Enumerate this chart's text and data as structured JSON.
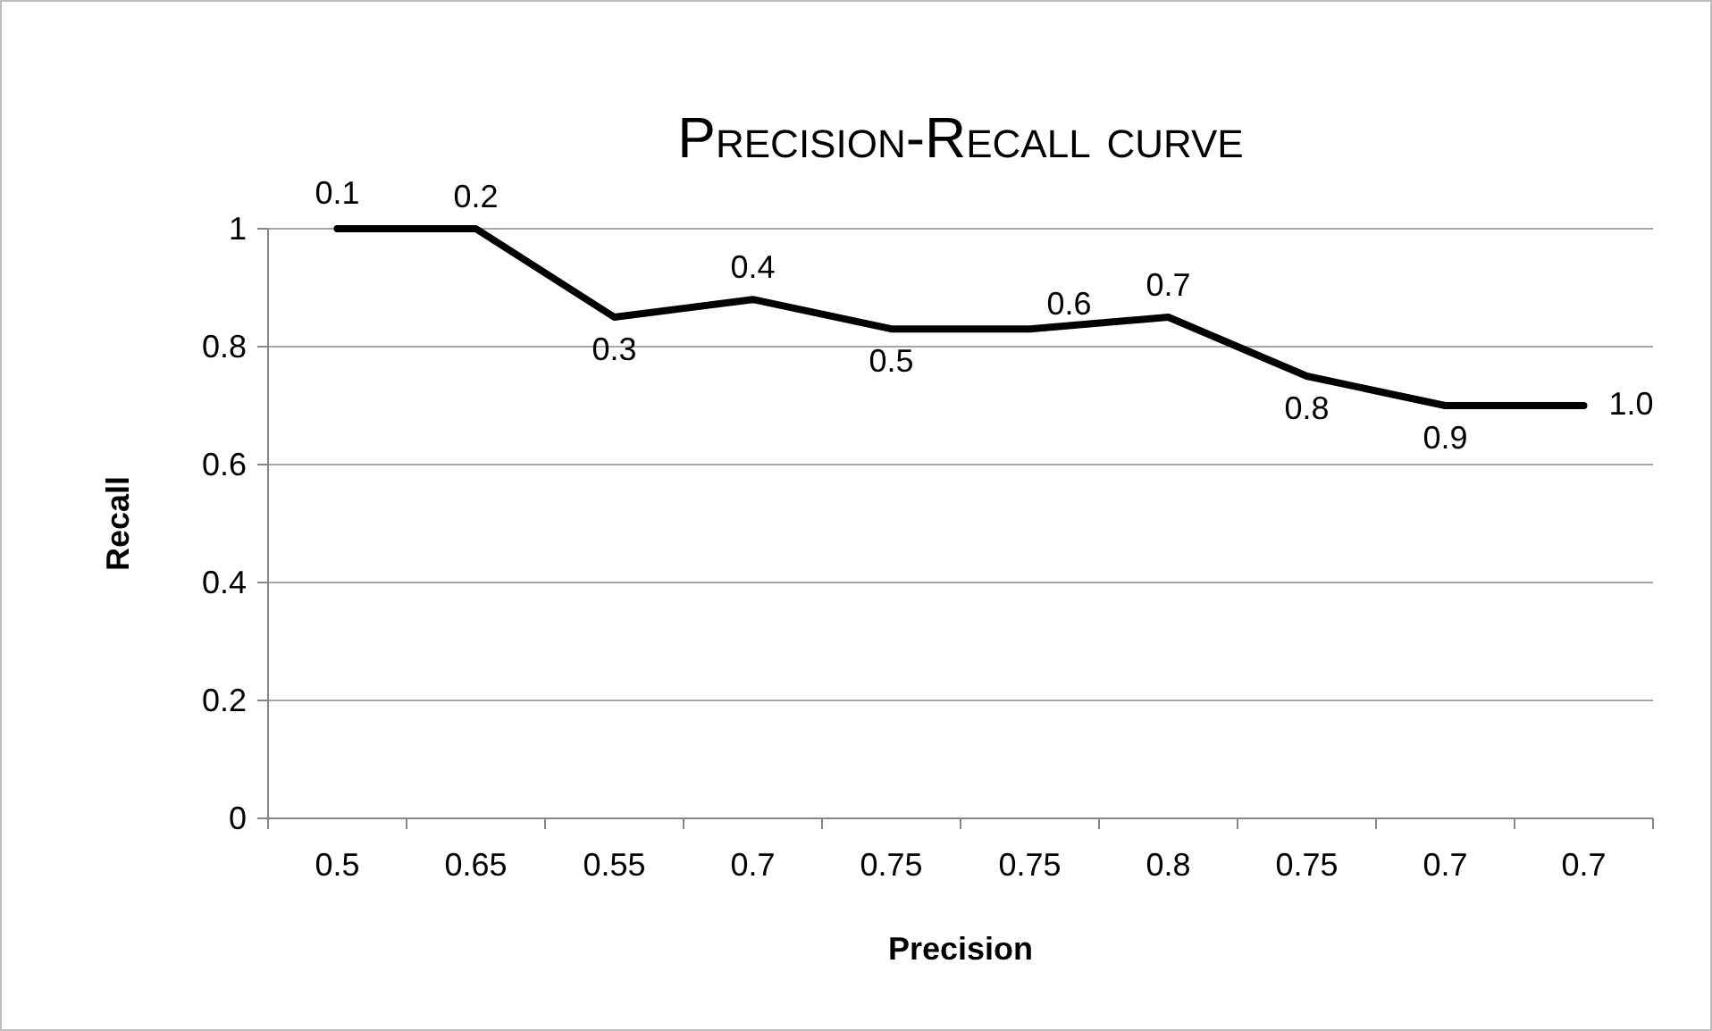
{
  "chart_data": {
    "type": "line",
    "title": "Precision-Recall curve",
    "xlabel": "Precision",
    "ylabel": "Recall",
    "categories": [
      "0.5",
      "0.65",
      "0.55",
      "0.7",
      "0.75",
      "0.75",
      "0.8",
      "0.75",
      "0.7",
      "0.7"
    ],
    "series": [
      {
        "color": "#000000",
        "values": [
          1,
          1,
          0.85,
          0.88,
          0.83,
          0.83,
          0.85,
          0.75,
          0.7,
          0.7
        ]
      }
    ],
    "annotations": [
      "0.1",
      "0.2",
      "0.3",
      "0.4",
      "0.5",
      "0.6",
      "0.7",
      "0.8",
      "0.9",
      "1.0"
    ],
    "ylim": [
      0,
      1
    ],
    "yticks": [
      0,
      0.2,
      0.4,
      0.6,
      0.8,
      1
    ],
    "grid": "y",
    "marker": "none",
    "line_style": "solid"
  }
}
